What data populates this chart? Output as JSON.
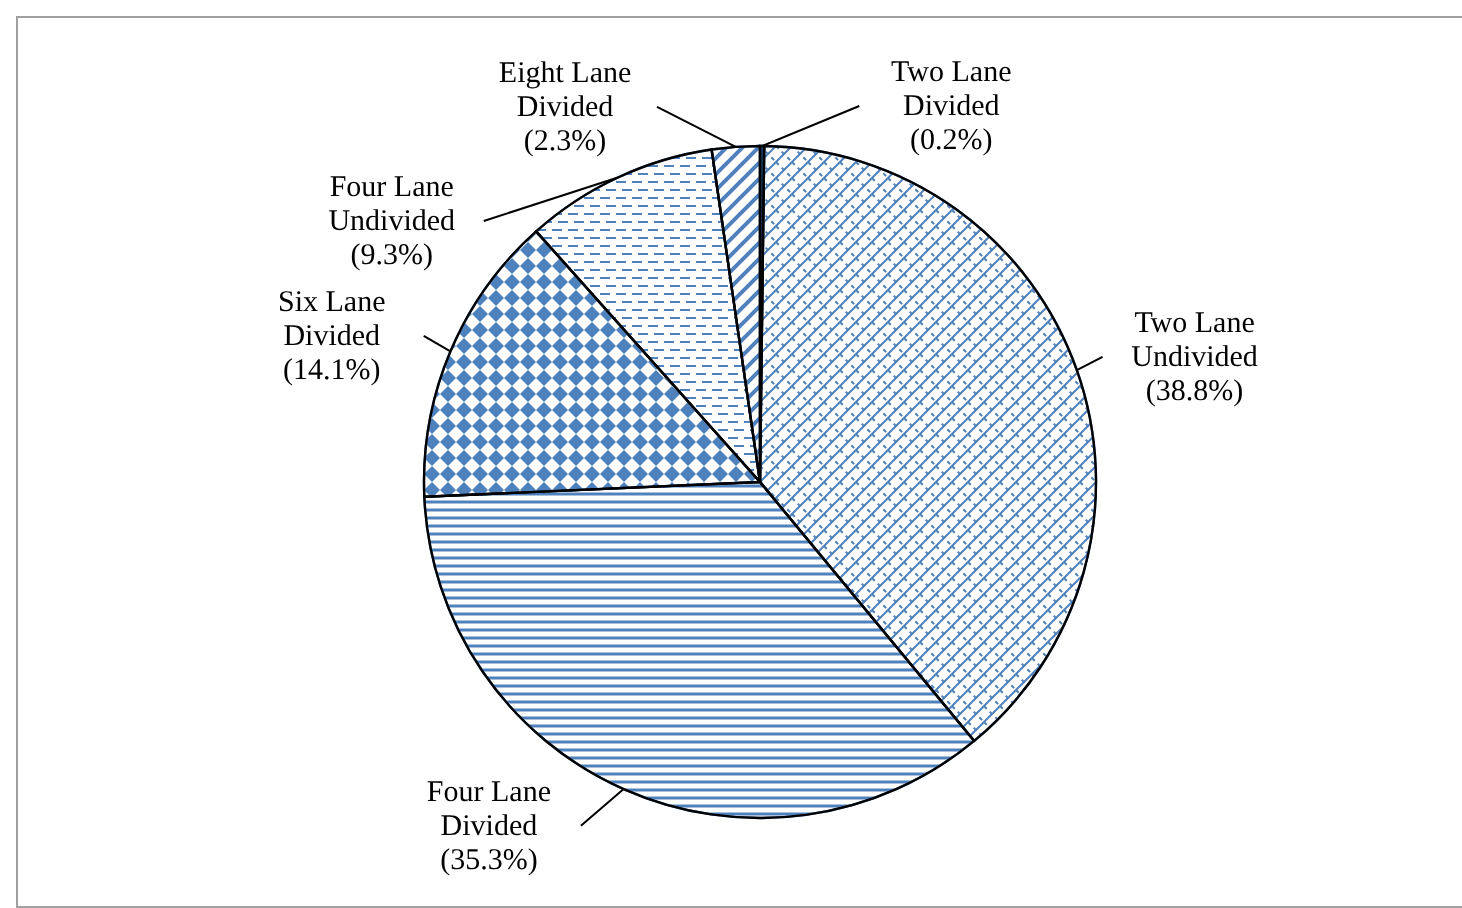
{
  "chart_data": {
    "type": "pie",
    "categories": [
      "Two Lane Divided",
      "Two Lane Undivided",
      "Four Lane Divided",
      "Six Lane Divided",
      "Four Lane Undivided",
      "Eight Lane Divided"
    ],
    "values": [
      0.2,
      38.8,
      35.3,
      14.1,
      9.3,
      2.3
    ],
    "value_labels": [
      "(0.2%)",
      "(38.8%)",
      "(35.3%)",
      "(14.1%)",
      "(9.3%)",
      "(2.3%)"
    ],
    "colors": [
      "#17375e",
      "#4f81bd",
      "#4f81bd",
      "#4f81bd",
      "#4f81bd",
      "#4f81bd"
    ]
  }
}
